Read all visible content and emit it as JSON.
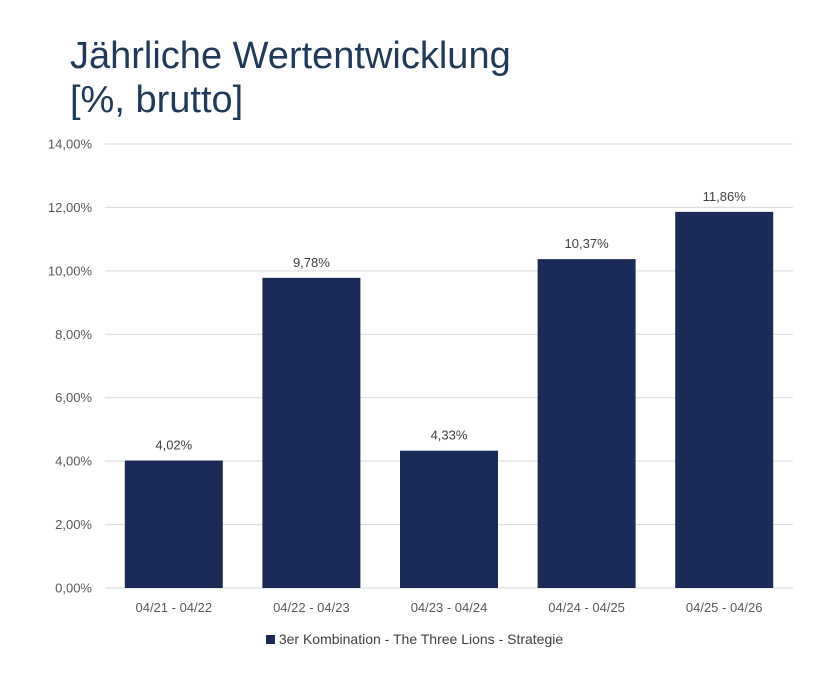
{
  "title": {
    "line1": "Jährliche Wertentwicklung",
    "line2": "[%, brutto]"
  },
  "colors": {
    "bar": "#1a2b58",
    "title": "#1f3a5a",
    "grid": "#d9d9d9"
  },
  "chart_data": {
    "type": "bar",
    "categories": [
      "04/21 - 04/22",
      "04/22 - 04/23",
      "04/23 - 04/24",
      "04/24 - 04/25",
      "04/25 - 04/26"
    ],
    "series": [
      {
        "name": "3er Kombination - The Three Lions - Strategie",
        "values": [
          4.02,
          9.78,
          4.33,
          10.37,
          11.86
        ],
        "labels": [
          "4,02%",
          "9,78%",
          "4,33%",
          "10,37%",
          "11,86%"
        ]
      }
    ],
    "ylim": [
      0,
      14
    ],
    "yticks": [
      0,
      2,
      4,
      6,
      8,
      10,
      12,
      14
    ],
    "ytick_labels": [
      "0,00%",
      "2,00%",
      "4,00%",
      "6,00%",
      "8,00%",
      "10,00%",
      "12,00%",
      "14,00%"
    ],
    "grid": true,
    "legend_position": "bottom"
  }
}
